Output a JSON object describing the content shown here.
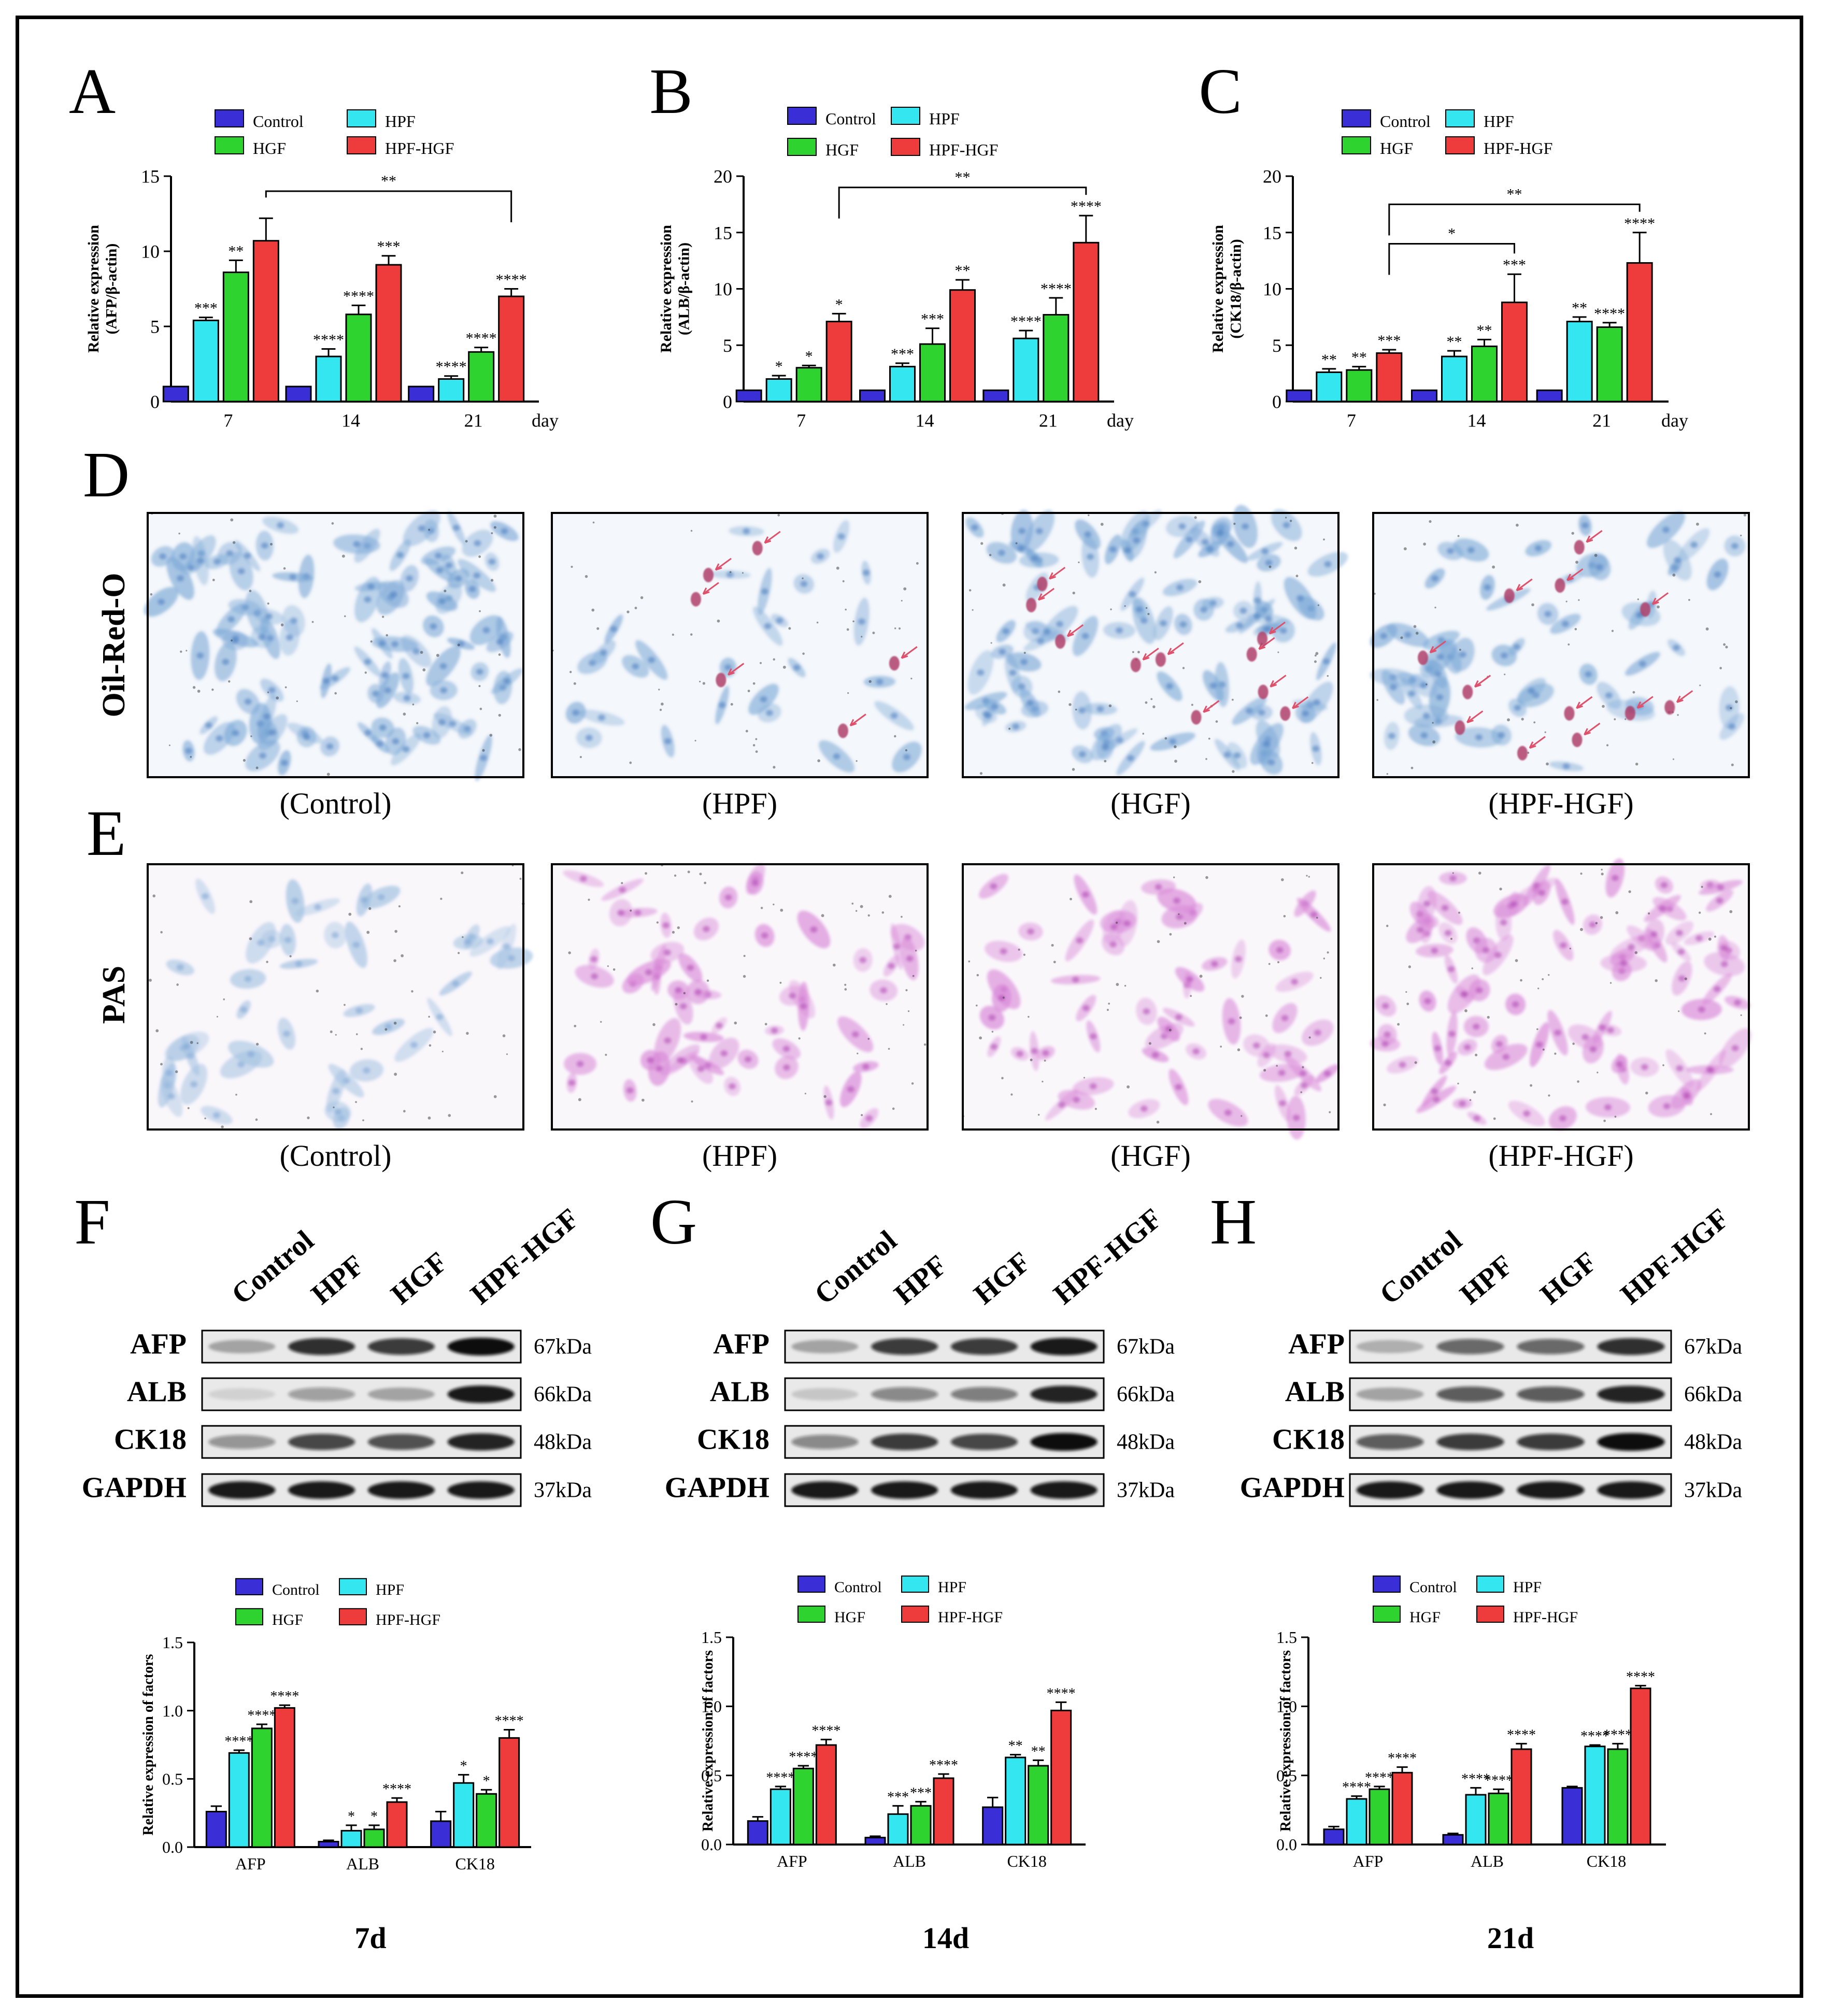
{
  "colors": {
    "control": "#3a2fd6",
    "hpf": "#33e6f0",
    "hgf": "#2fd32f",
    "hpf_hgf": "#ee3b3b",
    "oil_bg": "#f4f7fb",
    "oil_cell": "#7aa7d6",
    "oil_drop": "#b0406a",
    "pas_bg": "#faf7fb",
    "pas_blue": "#9fbfe0",
    "pas_pink": "#d98ad8"
  },
  "panel_letters": {
    "A": "A",
    "B": "B",
    "C": "C",
    "D": "D",
    "E": "E",
    "F": "F",
    "G": "G",
    "H": "H"
  },
  "legend": [
    "Control",
    "HPF",
    "HGF",
    "HPF-HGF"
  ],
  "qpcr_unit": "day",
  "chart_data": [
    {
      "id": "A",
      "type": "bar",
      "ylabel": [
        "Relative expression",
        "(AFP/β-actin)"
      ],
      "categories": [
        "7",
        "14",
        "21"
      ],
      "ylim": [
        0,
        15
      ],
      "yticks": [
        0,
        5,
        10,
        15
      ],
      "series": [
        {
          "name": "Control",
          "values": [
            1,
            1,
            1
          ],
          "errors": [
            0,
            0,
            0
          ]
        },
        {
          "name": "HPF",
          "values": [
            5.4,
            3.0,
            1.5
          ],
          "errors": [
            0.2,
            0.5,
            0.2
          ]
        },
        {
          "name": "HGF",
          "values": [
            8.6,
            5.8,
            3.3
          ],
          "errors": [
            0.8,
            0.6,
            0.3
          ]
        },
        {
          "name": "HPF-HGF",
          "values": [
            10.7,
            9.1,
            7.0
          ],
          "errors": [
            1.5,
            0.6,
            0.5
          ]
        }
      ],
      "significance": [
        [
          "***",
          "****",
          "****"
        ],
        [
          "**",
          "****",
          "****"
        ],
        [
          "",
          "***",
          "****"
        ]
      ],
      "brackets": [
        {
          "from": 0,
          "to": 2,
          "label": "**",
          "y": 14
        }
      ]
    },
    {
      "id": "B",
      "type": "bar",
      "ylabel": [
        "Relative expression",
        "(ALB/β-actin)"
      ],
      "categories": [
        "7",
        "14",
        "21"
      ],
      "ylim": [
        0,
        20
      ],
      "yticks": [
        0,
        5,
        10,
        15,
        20
      ],
      "series": [
        {
          "name": "Control",
          "values": [
            1,
            1,
            1
          ],
          "errors": [
            0,
            0,
            0
          ]
        },
        {
          "name": "HPF",
          "values": [
            2.0,
            3.1,
            5.6
          ],
          "errors": [
            0.3,
            0.3,
            0.7
          ]
        },
        {
          "name": "HGF",
          "values": [
            3.0,
            5.1,
            7.7
          ],
          "errors": [
            0.2,
            1.4,
            1.5
          ]
        },
        {
          "name": "HPF-HGF",
          "values": [
            7.1,
            9.9,
            14.1
          ],
          "errors": [
            0.7,
            0.9,
            2.4
          ]
        }
      ],
      "significance": [
        [
          "*",
          "***",
          "****"
        ],
        [
          "*",
          "***",
          "****"
        ],
        [
          "*",
          "**",
          "****"
        ]
      ],
      "brackets": [
        {
          "from": 0,
          "to": 2,
          "label": "**",
          "y": 19
        }
      ]
    },
    {
      "id": "C",
      "type": "bar",
      "ylabel": [
        "Relative expression",
        "(CK18/β-actin)"
      ],
      "categories": [
        "7",
        "14",
        "21"
      ],
      "ylim": [
        0,
        20
      ],
      "yticks": [
        0,
        5,
        10,
        15,
        20
      ],
      "series": [
        {
          "name": "Control",
          "values": [
            1,
            1,
            1
          ],
          "errors": [
            0,
            0,
            0
          ]
        },
        {
          "name": "HPF",
          "values": [
            2.6,
            4.0,
            7.1
          ],
          "errors": [
            0.3,
            0.5,
            0.4
          ]
        },
        {
          "name": "HGF",
          "values": [
            2.8,
            4.9,
            6.6
          ],
          "errors": [
            0.3,
            0.6,
            0.4
          ]
        },
        {
          "name": "HPF-HGF",
          "values": [
            4.3,
            8.8,
            12.3
          ],
          "errors": [
            0.3,
            2.5,
            2.7
          ]
        }
      ],
      "significance": [
        [
          "**",
          "**",
          "**"
        ],
        [
          "**",
          "**",
          "****"
        ],
        [
          "***",
          "***",
          "****"
        ]
      ],
      "brackets": [
        {
          "from": 0,
          "to": 2,
          "label": "**",
          "y": 17.5
        },
        {
          "from": 0,
          "to": 1,
          "label": "*",
          "y": 14
        }
      ]
    },
    {
      "id": "F_quant",
      "type": "bar",
      "ylabel": [
        "Relative expression of factors"
      ],
      "categories": [
        "AFP",
        "ALB",
        "CK18"
      ],
      "ylim": [
        0,
        1.5
      ],
      "yticks": [
        0.0,
        0.5,
        1.0,
        1.5
      ],
      "series": [
        {
          "name": "Control",
          "values": [
            0.26,
            0.04,
            0.19
          ],
          "errors": [
            0.04,
            0.01,
            0.07
          ]
        },
        {
          "name": "HPF",
          "values": [
            0.69,
            0.12,
            0.47
          ],
          "errors": [
            0.02,
            0.04,
            0.06
          ]
        },
        {
          "name": "HGF",
          "values": [
            0.87,
            0.13,
            0.39
          ],
          "errors": [
            0.03,
            0.03,
            0.03
          ]
        },
        {
          "name": "HPF-HGF",
          "values": [
            1.02,
            0.33,
            0.8
          ],
          "errors": [
            0.02,
            0.03,
            0.06
          ]
        }
      ],
      "significance": [
        [
          "****",
          "*",
          "*"
        ],
        [
          "****",
          "*",
          "*"
        ],
        [
          "****",
          "****",
          "****"
        ]
      ],
      "caption": "7d"
    },
    {
      "id": "G_quant",
      "type": "bar",
      "ylabel": [
        "Relative expression of factors"
      ],
      "categories": [
        "AFP",
        "ALB",
        "CK18"
      ],
      "ylim": [
        0,
        1.5
      ],
      "yticks": [
        0.0,
        0.5,
        1.0,
        1.5
      ],
      "series": [
        {
          "name": "Control",
          "values": [
            0.17,
            0.05,
            0.27
          ],
          "errors": [
            0.03,
            0.01,
            0.07
          ]
        },
        {
          "name": "HPF",
          "values": [
            0.4,
            0.22,
            0.63
          ],
          "errors": [
            0.02,
            0.06,
            0.02
          ]
        },
        {
          "name": "HGF",
          "values": [
            0.55,
            0.28,
            0.57
          ],
          "errors": [
            0.02,
            0.03,
            0.04
          ]
        },
        {
          "name": "HPF-HGF",
          "values": [
            0.72,
            0.48,
            0.97
          ],
          "errors": [
            0.04,
            0.03,
            0.06
          ]
        }
      ],
      "significance": [
        [
          "****",
          "***",
          "**"
        ],
        [
          "****",
          "***",
          "**"
        ],
        [
          "****",
          "****",
          "****"
        ]
      ],
      "caption": "14d"
    },
    {
      "id": "H_quant",
      "type": "bar",
      "ylabel": [
        "Relative expression of factors"
      ],
      "categories": [
        "AFP",
        "ALB",
        "CK18"
      ],
      "ylim": [
        0,
        1.5
      ],
      "yticks": [
        0.0,
        0.5,
        1.0,
        1.5
      ],
      "series": [
        {
          "name": "Control",
          "values": [
            0.11,
            0.07,
            0.41
          ],
          "errors": [
            0.02,
            0.01,
            0.01
          ]
        },
        {
          "name": "HPF",
          "values": [
            0.33,
            0.36,
            0.71
          ],
          "errors": [
            0.02,
            0.05,
            0.01
          ]
        },
        {
          "name": "HGF",
          "values": [
            0.4,
            0.37,
            0.69
          ],
          "errors": [
            0.02,
            0.03,
            0.04
          ]
        },
        {
          "name": "HPF-HGF",
          "values": [
            0.52,
            0.69,
            1.13
          ],
          "errors": [
            0.04,
            0.04,
            0.02
          ]
        }
      ],
      "significance": [
        [
          "****",
          "****",
          "****"
        ],
        [
          "****",
          "****",
          "****"
        ],
        [
          "****",
          "****",
          "****"
        ]
      ],
      "caption": "21d"
    }
  ],
  "staining": {
    "row_labels": {
      "oil": "Oil-Red-O",
      "pas": "PAS"
    },
    "captions": [
      "(Control)",
      "(HPF)",
      "(HGF)",
      "(HPF-HGF)"
    ]
  },
  "western": {
    "lanes": [
      "Control",
      "HPF",
      "HGF",
      "HPF-HGF"
    ],
    "proteins": [
      "AFP",
      "ALB",
      "CK18",
      "GAPDH"
    ],
    "sizes": [
      "67kDa",
      "66kDa",
      "48kDa",
      "37kDa"
    ],
    "intensity": [
      [
        [
          0.3,
          0.85,
          0.8,
          1.0
        ],
        [
          0.1,
          0.35,
          0.3,
          0.95
        ],
        [
          0.4,
          0.75,
          0.7,
          0.9
        ],
        [
          0.95,
          0.95,
          0.95,
          0.95
        ]
      ],
      [
        [
          0.3,
          0.8,
          0.8,
          0.95
        ],
        [
          0.15,
          0.45,
          0.5,
          0.9
        ],
        [
          0.45,
          0.8,
          0.75,
          1.0
        ],
        [
          0.95,
          0.95,
          0.95,
          0.95
        ]
      ],
      [
        [
          0.25,
          0.6,
          0.6,
          0.85
        ],
        [
          0.3,
          0.65,
          0.65,
          0.9
        ],
        [
          0.65,
          0.8,
          0.8,
          1.0
        ],
        [
          0.95,
          0.95,
          0.95,
          0.95
        ]
      ]
    ]
  }
}
